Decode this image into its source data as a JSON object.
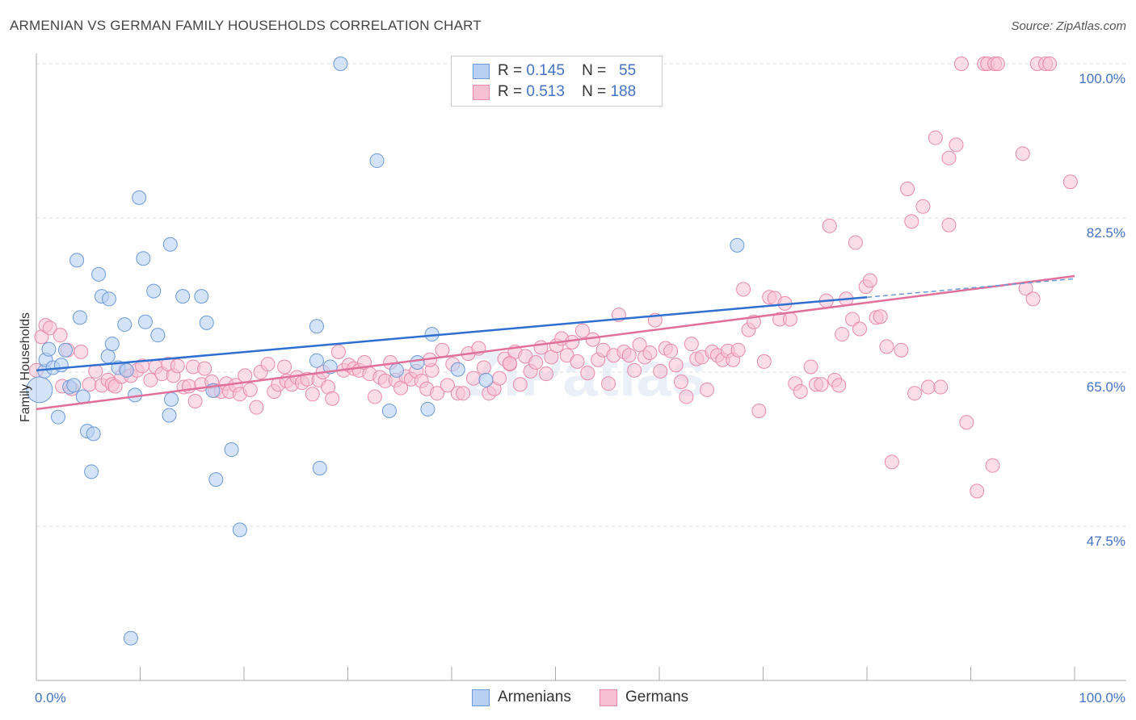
{
  "title": "ARMENIAN VS GERMAN FAMILY HOUSEHOLDS CORRELATION CHART",
  "source": "Source: ZipAtlas.com",
  "watermark": "ZIPatlas",
  "legend": {
    "rows": [
      {
        "r_label": "R =",
        "r_value": "0.145",
        "n_label": "N =",
        "n_value": "55"
      },
      {
        "r_label": "R =",
        "r_value": "0.513",
        "n_label": "N =",
        "n_value": "188"
      }
    ]
  },
  "bottom_legend": [
    "Armenians",
    "Germans"
  ],
  "colors": {
    "armenians_fill": "#b8d0f2",
    "armenians_stroke": "#6c9ad8",
    "armenians_line": "#2f6fd0",
    "germans_fill": "#f7c1d3",
    "germans_stroke": "#e98aaa",
    "germans_line": "#e0709a",
    "tick_label": "#4472c4"
  },
  "chart_data": {
    "type": "scatter",
    "title": "ARMENIAN VS GERMAN FAMILY HOUSEHOLDS CORRELATION CHART",
    "xlabel": "",
    "ylabel": "Family Households",
    "xlim": [
      0,
      100
    ],
    "ylim": [
      33,
      101.5
    ],
    "x_tick_labels": [
      "0.0%",
      "100.0%"
    ],
    "y_ticks": [
      47.5,
      65.0,
      82.5,
      100.0
    ],
    "y_tick_labels": [
      "47.5%",
      "65.0%",
      "82.5%",
      "100.0%"
    ],
    "grid": "dashed-horizontal",
    "legend_position": "top-center",
    "series": [
      {
        "name": "Armenians",
        "r": 0.145,
        "n": 55,
        "trend": {
          "x": [
            0,
            80
          ],
          "y": [
            65.2,
            73.5
          ]
        },
        "trend_extension": {
          "x": [
            80,
            100
          ],
          "y": [
            73.5,
            75.6
          ]
        },
        "points": [
          {
            "x": 0.3,
            "y": 63.0
          },
          {
            "x": 0.8,
            "y": 65.1
          },
          {
            "x": 0.9,
            "y": 66.4
          },
          {
            "x": 1.2,
            "y": 67.6
          },
          {
            "x": 1.6,
            "y": 65.5
          },
          {
            "x": 2.1,
            "y": 59.9
          },
          {
            "x": 2.4,
            "y": 65.8
          },
          {
            "x": 2.8,
            "y": 67.5
          },
          {
            "x": 3.2,
            "y": 63.3
          },
          {
            "x": 3.6,
            "y": 63.5
          },
          {
            "x": 3.9,
            "y": 77.7
          },
          {
            "x": 4.2,
            "y": 71.2
          },
          {
            "x": 4.5,
            "y": 62.2
          },
          {
            "x": 4.9,
            "y": 58.3
          },
          {
            "x": 5.3,
            "y": 53.7
          },
          {
            "x": 5.5,
            "y": 58.0
          },
          {
            "x": 6.0,
            "y": 76.1
          },
          {
            "x": 6.3,
            "y": 73.6
          },
          {
            "x": 6.9,
            "y": 66.8
          },
          {
            "x": 7.0,
            "y": 73.3
          },
          {
            "x": 7.3,
            "y": 68.2
          },
          {
            "x": 7.9,
            "y": 65.5
          },
          {
            "x": 8.5,
            "y": 70.4
          },
          {
            "x": 8.7,
            "y": 65.2
          },
          {
            "x": 9.1,
            "y": 34.8
          },
          {
            "x": 9.5,
            "y": 62.4
          },
          {
            "x": 9.9,
            "y": 84.8
          },
          {
            "x": 10.3,
            "y": 77.9
          },
          {
            "x": 10.5,
            "y": 70.7
          },
          {
            "x": 11.3,
            "y": 74.2
          },
          {
            "x": 11.7,
            "y": 69.2
          },
          {
            "x": 12.8,
            "y": 60.1
          },
          {
            "x": 12.9,
            "y": 79.5
          },
          {
            "x": 13.0,
            "y": 61.9
          },
          {
            "x": 14.1,
            "y": 73.6
          },
          {
            "x": 15.9,
            "y": 73.6
          },
          {
            "x": 16.4,
            "y": 70.6
          },
          {
            "x": 17.0,
            "y": 62.9
          },
          {
            "x": 17.3,
            "y": 52.8
          },
          {
            "x": 18.8,
            "y": 56.2
          },
          {
            "x": 19.6,
            "y": 47.1
          },
          {
            "x": 27.0,
            "y": 70.2
          },
          {
            "x": 27.3,
            "y": 54.1
          },
          {
            "x": 27.0,
            "y": 66.3
          },
          {
            "x": 28.3,
            "y": 65.6
          },
          {
            "x": 29.3,
            "y": 100.0
          },
          {
            "x": 32.8,
            "y": 89.0
          },
          {
            "x": 34.0,
            "y": 60.6
          },
          {
            "x": 34.7,
            "y": 65.2
          },
          {
            "x": 36.7,
            "y": 66.1
          },
          {
            "x": 37.7,
            "y": 60.8
          },
          {
            "x": 38.1,
            "y": 69.3
          },
          {
            "x": 40.6,
            "y": 65.3
          },
          {
            "x": 43.3,
            "y": 64.1
          },
          {
            "x": 67.5,
            "y": 79.4
          }
        ]
      },
      {
        "name": "Germans",
        "r": 0.513,
        "n": 188,
        "trend": {
          "x": [
            0,
            100
          ],
          "y": [
            60.8,
            75.9
          ]
        },
        "points": [
          {
            "x": 0.5,
            "y": 69.0
          },
          {
            "x": 0.9,
            "y": 70.3
          },
          {
            "x": 1.3,
            "y": 70.0
          },
          {
            "x": 2.3,
            "y": 69.2
          },
          {
            "x": 2.5,
            "y": 63.4
          },
          {
            "x": 3.0,
            "y": 67.5
          },
          {
            "x": 3.4,
            "y": 63.1
          },
          {
            "x": 4.3,
            "y": 67.3
          },
          {
            "x": 5.1,
            "y": 63.6
          },
          {
            "x": 5.7,
            "y": 65.1
          },
          {
            "x": 6.3,
            "y": 63.5
          },
          {
            "x": 6.9,
            "y": 64.1
          },
          {
            "x": 7.3,
            "y": 63.6
          },
          {
            "x": 7.6,
            "y": 63.4
          },
          {
            "x": 8.2,
            "y": 64.5
          },
          {
            "x": 8.6,
            "y": 65.3
          },
          {
            "x": 9.1,
            "y": 64.6
          },
          {
            "x": 9.7,
            "y": 65.2
          },
          {
            "x": 10.2,
            "y": 65.7
          },
          {
            "x": 11.0,
            "y": 64.1
          },
          {
            "x": 11.5,
            "y": 65.6
          },
          {
            "x": 12.1,
            "y": 64.8
          },
          {
            "x": 12.7,
            "y": 65.9
          },
          {
            "x": 13.2,
            "y": 64.6
          },
          {
            "x": 13.6,
            "y": 65.7
          },
          {
            "x": 14.2,
            "y": 63.3
          },
          {
            "x": 14.7,
            "y": 63.4
          },
          {
            "x": 15.1,
            "y": 65.6
          },
          {
            "x": 15.3,
            "y": 61.7
          },
          {
            "x": 15.9,
            "y": 63.6
          },
          {
            "x": 16.2,
            "y": 65.4
          },
          {
            "x": 16.9,
            "y": 63.9
          },
          {
            "x": 17.2,
            "y": 62.9
          },
          {
            "x": 17.8,
            "y": 62.8
          },
          {
            "x": 18.3,
            "y": 63.7
          },
          {
            "x": 18.6,
            "y": 62.8
          },
          {
            "x": 19.2,
            "y": 63.5
          },
          {
            "x": 19.6,
            "y": 62.5
          },
          {
            "x": 20.1,
            "y": 64.6
          },
          {
            "x": 20.6,
            "y": 63.0
          },
          {
            "x": 21.2,
            "y": 61.0
          },
          {
            "x": 21.6,
            "y": 65.0
          },
          {
            "x": 22.3,
            "y": 65.9
          },
          {
            "x": 22.9,
            "y": 62.8
          },
          {
            "x": 23.3,
            "y": 63.6
          },
          {
            "x": 23.9,
            "y": 65.6
          },
          {
            "x": 24.1,
            "y": 64.0
          },
          {
            "x": 24.6,
            "y": 63.6
          },
          {
            "x": 25.1,
            "y": 64.4
          },
          {
            "x": 25.6,
            "y": 63.8
          },
          {
            "x": 26.1,
            "y": 64.2
          },
          {
            "x": 26.6,
            "y": 62.5
          },
          {
            "x": 27.2,
            "y": 64.1
          },
          {
            "x": 27.6,
            "y": 65.0
          },
          {
            "x": 28.1,
            "y": 63.3
          },
          {
            "x": 28.5,
            "y": 62.0
          },
          {
            "x": 29.1,
            "y": 67.3
          },
          {
            "x": 29.6,
            "y": 65.2
          },
          {
            "x": 30.1,
            "y": 65.8
          },
          {
            "x": 30.6,
            "y": 65.4
          },
          {
            "x": 31.1,
            "y": 65.2
          },
          {
            "x": 31.6,
            "y": 66.1
          },
          {
            "x": 32.1,
            "y": 64.8
          },
          {
            "x": 32.6,
            "y": 62.2
          },
          {
            "x": 33.1,
            "y": 64.4
          },
          {
            "x": 33.6,
            "y": 64.0
          },
          {
            "x": 34.1,
            "y": 66.1
          },
          {
            "x": 34.6,
            "y": 64.1
          },
          {
            "x": 35.1,
            "y": 63.2
          },
          {
            "x": 35.6,
            "y": 64.5
          },
          {
            "x": 36.1,
            "y": 64.2
          },
          {
            "x": 36.6,
            "y": 65.1
          },
          {
            "x": 37.1,
            "y": 64.0
          },
          {
            "x": 37.6,
            "y": 63.1
          },
          {
            "x": 38.1,
            "y": 65.2
          },
          {
            "x": 38.6,
            "y": 62.6
          },
          {
            "x": 39.1,
            "y": 67.5
          },
          {
            "x": 39.6,
            "y": 63.5
          },
          {
            "x": 40.1,
            "y": 65.9
          },
          {
            "x": 40.6,
            "y": 62.6
          },
          {
            "x": 41.1,
            "y": 62.6
          },
          {
            "x": 41.6,
            "y": 67.1
          },
          {
            "x": 42.1,
            "y": 64.3
          },
          {
            "x": 42.6,
            "y": 67.7
          },
          {
            "x": 43.1,
            "y": 65.5
          },
          {
            "x": 43.6,
            "y": 62.6
          },
          {
            "x": 44.1,
            "y": 63.1
          },
          {
            "x": 44.6,
            "y": 64.3
          },
          {
            "x": 45.1,
            "y": 66.5
          },
          {
            "x": 45.6,
            "y": 65.9
          },
          {
            "x": 46.1,
            "y": 67.3
          },
          {
            "x": 46.6,
            "y": 63.6
          },
          {
            "x": 47.1,
            "y": 66.8
          },
          {
            "x": 47.6,
            "y": 65.1
          },
          {
            "x": 48.1,
            "y": 66.1
          },
          {
            "x": 48.6,
            "y": 67.8
          },
          {
            "x": 49.1,
            "y": 64.8
          },
          {
            "x": 49.6,
            "y": 66.7
          },
          {
            "x": 50.1,
            "y": 68.0
          },
          {
            "x": 50.6,
            "y": 68.8
          },
          {
            "x": 51.1,
            "y": 66.9
          },
          {
            "x": 51.6,
            "y": 68.4
          },
          {
            "x": 52.1,
            "y": 66.2
          },
          {
            "x": 52.6,
            "y": 69.7
          },
          {
            "x": 53.1,
            "y": 64.9
          },
          {
            "x": 53.6,
            "y": 68.7
          },
          {
            "x": 54.1,
            "y": 66.4
          },
          {
            "x": 54.6,
            "y": 67.5
          },
          {
            "x": 55.1,
            "y": 63.7
          },
          {
            "x": 55.6,
            "y": 66.9
          },
          {
            "x": 56.1,
            "y": 71.5
          },
          {
            "x": 56.6,
            "y": 67.3
          },
          {
            "x": 57.1,
            "y": 66.9
          },
          {
            "x": 57.6,
            "y": 65.2
          },
          {
            "x": 58.1,
            "y": 68.1
          },
          {
            "x": 58.6,
            "y": 66.7
          },
          {
            "x": 59.1,
            "y": 67.2
          },
          {
            "x": 59.6,
            "y": 70.9
          },
          {
            "x": 60.1,
            "y": 65.1
          },
          {
            "x": 60.6,
            "y": 67.7
          },
          {
            "x": 61.1,
            "y": 67.4
          },
          {
            "x": 61.6,
            "y": 65.8
          },
          {
            "x": 62.1,
            "y": 63.9
          },
          {
            "x": 62.6,
            "y": 62.2
          },
          {
            "x": 63.1,
            "y": 68.2
          },
          {
            "x": 63.6,
            "y": 66.5
          },
          {
            "x": 64.1,
            "y": 66.7
          },
          {
            "x": 64.6,
            "y": 63.0
          },
          {
            "x": 65.1,
            "y": 67.3
          },
          {
            "x": 65.6,
            "y": 66.9
          },
          {
            "x": 66.1,
            "y": 66.4
          },
          {
            "x": 66.6,
            "y": 67.4
          },
          {
            "x": 67.1,
            "y": 66.4
          },
          {
            "x": 67.6,
            "y": 67.5
          },
          {
            "x": 68.1,
            "y": 74.4
          },
          {
            "x": 68.6,
            "y": 69.8
          },
          {
            "x": 69.1,
            "y": 70.7
          },
          {
            "x": 69.6,
            "y": 60.6
          },
          {
            "x": 70.1,
            "y": 66.2
          },
          {
            "x": 70.6,
            "y": 73.5
          },
          {
            "x": 71.1,
            "y": 73.4
          },
          {
            "x": 71.6,
            "y": 71.0
          },
          {
            "x": 72.1,
            "y": 72.8
          },
          {
            "x": 72.6,
            "y": 71.0
          },
          {
            "x": 73.1,
            "y": 63.7
          },
          {
            "x": 73.6,
            "y": 62.8
          },
          {
            "x": 74.6,
            "y": 65.6
          },
          {
            "x": 75.1,
            "y": 63.6
          },
          {
            "x": 75.6,
            "y": 63.6
          },
          {
            "x": 76.1,
            "y": 73.1
          },
          {
            "x": 76.4,
            "y": 81.6
          },
          {
            "x": 76.9,
            "y": 64.1
          },
          {
            "x": 77.3,
            "y": 63.5
          },
          {
            "x": 77.6,
            "y": 69.3
          },
          {
            "x": 78.0,
            "y": 73.3
          },
          {
            "x": 78.6,
            "y": 71.0
          },
          {
            "x": 78.9,
            "y": 79.7
          },
          {
            "x": 79.3,
            "y": 69.9
          },
          {
            "x": 79.9,
            "y": 74.7
          },
          {
            "x": 80.3,
            "y": 75.4
          },
          {
            "x": 80.9,
            "y": 71.2
          },
          {
            "x": 81.3,
            "y": 71.3
          },
          {
            "x": 81.9,
            "y": 67.9
          },
          {
            "x": 82.4,
            "y": 54.8
          },
          {
            "x": 83.3,
            "y": 67.5
          },
          {
            "x": 83.9,
            "y": 85.8
          },
          {
            "x": 84.3,
            "y": 82.1
          },
          {
            "x": 84.6,
            "y": 62.6
          },
          {
            "x": 85.4,
            "y": 83.8
          },
          {
            "x": 85.9,
            "y": 63.3
          },
          {
            "x": 86.6,
            "y": 91.6
          },
          {
            "x": 87.1,
            "y": 63.3
          },
          {
            "x": 87.9,
            "y": 81.7
          },
          {
            "x": 87.9,
            "y": 89.3
          },
          {
            "x": 88.6,
            "y": 90.8
          },
          {
            "x": 89.1,
            "y": 100.0
          },
          {
            "x": 89.6,
            "y": 59.3
          },
          {
            "x": 90.6,
            "y": 51.5
          },
          {
            "x": 91.3,
            "y": 100.0
          },
          {
            "x": 91.6,
            "y": 100.0
          },
          {
            "x": 92.1,
            "y": 54.4
          },
          {
            "x": 92.3,
            "y": 100.0
          },
          {
            "x": 92.6,
            "y": 100.0
          },
          {
            "x": 95.0,
            "y": 89.8
          },
          {
            "x": 95.3,
            "y": 74.5
          },
          {
            "x": 96.0,
            "y": 73.3
          },
          {
            "x": 96.4,
            "y": 100.0
          },
          {
            "x": 97.2,
            "y": 100.0
          },
          {
            "x": 97.6,
            "y": 100.0
          },
          {
            "x": 99.6,
            "y": 86.6
          },
          {
            "x": 0.0,
            "y": 65.2
          },
          {
            "x": 37.9,
            "y": 66.4
          },
          {
            "x": 45.6,
            "y": 66.0
          }
        ]
      }
    ]
  }
}
